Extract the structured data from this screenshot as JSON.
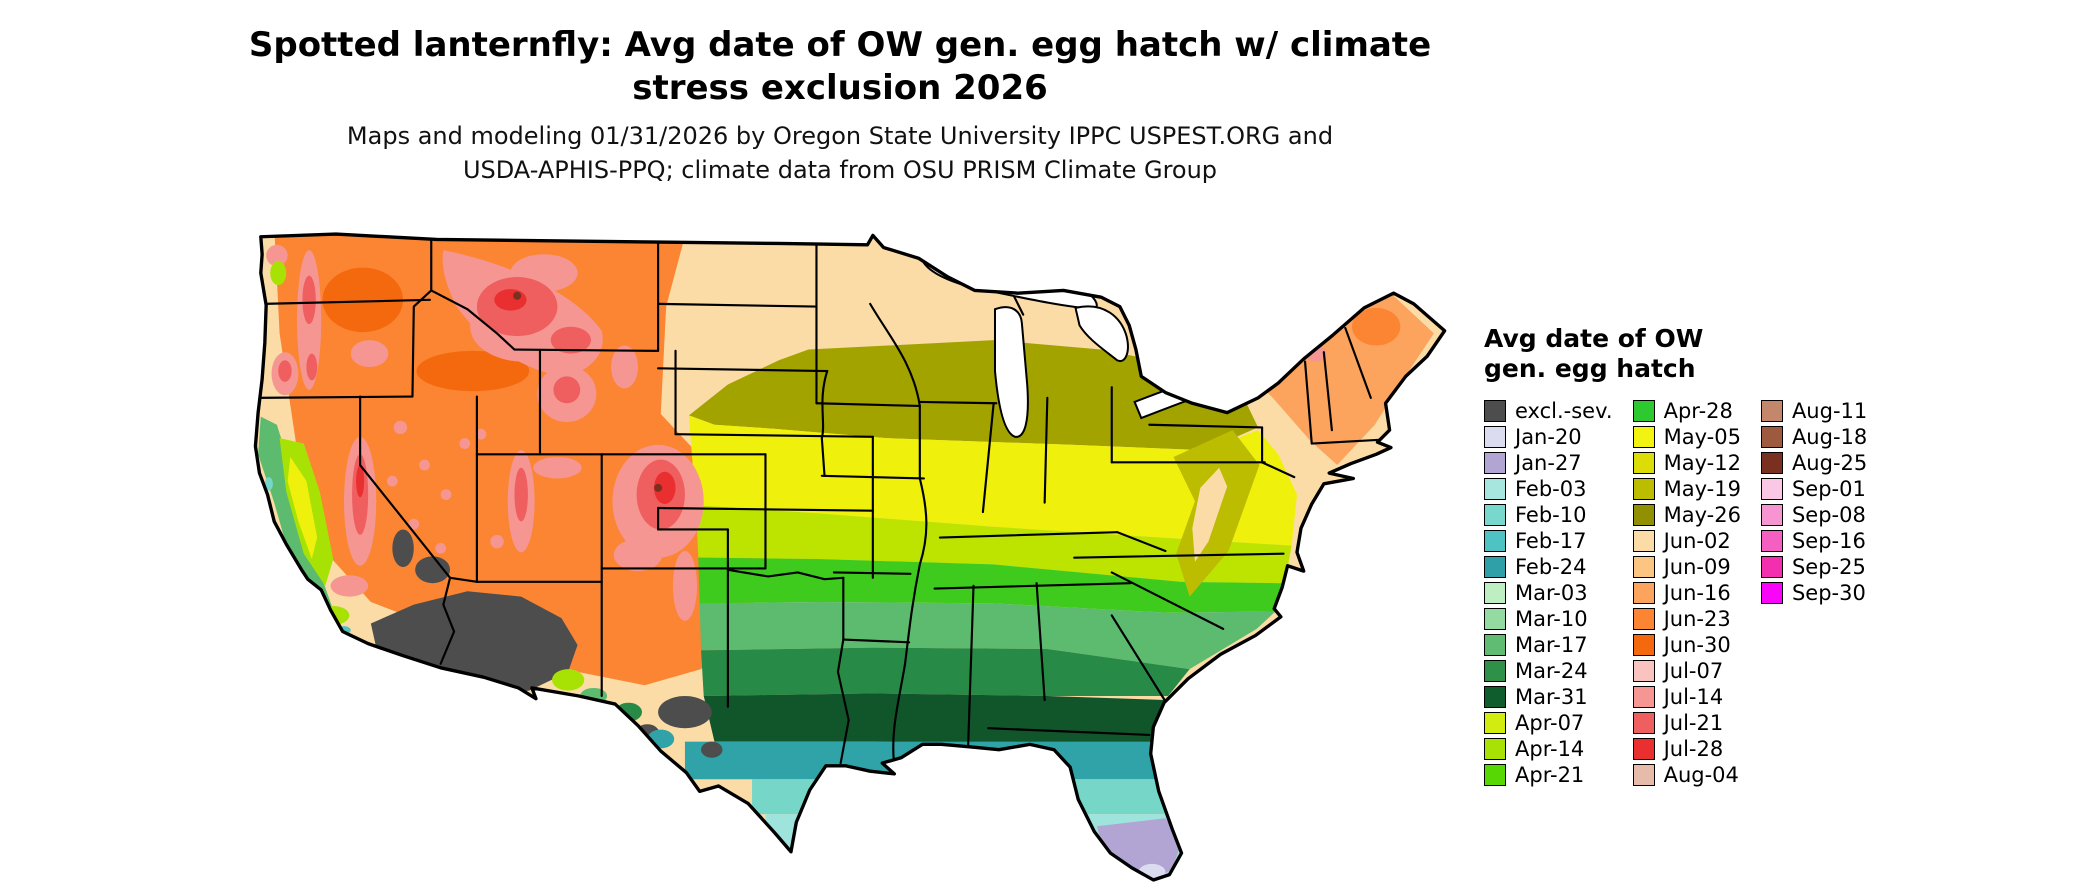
{
  "title": {
    "line1": "Spotted lanternfly: Avg date of OW gen. egg hatch w/ climate",
    "line2": "stress exclusion 2026"
  },
  "subtitle": {
    "line1": "Maps and modeling 01/31/2026 by Oregon State University IPPC USPEST.ORG and",
    "line2": "USDA-APHIS-PPQ; climate data from OSU PRISM Climate Group"
  },
  "legend": {
    "title_line1": "Avg date of OW",
    "title_line2": "gen. egg hatch",
    "columns": [
      [
        {
          "label": "excl.-sev.",
          "color": "#4D4D4D"
        },
        {
          "label": "Jan-20",
          "color": "#DCDCF0"
        },
        {
          "label": "Jan-27",
          "color": "#B2A5D3"
        },
        {
          "label": "Feb-03",
          "color": "#A6E6DE"
        },
        {
          "label": "Feb-10",
          "color": "#79D8CE"
        },
        {
          "label": "Feb-17",
          "color": "#4FC3C3"
        },
        {
          "label": "Feb-24",
          "color": "#2FA0A8"
        },
        {
          "label": "Mar-03",
          "color": "#BDEFC3"
        },
        {
          "label": "Mar-10",
          "color": "#93DBA0"
        },
        {
          "label": "Mar-17",
          "color": "#60BC72"
        },
        {
          "label": "Mar-24",
          "color": "#2F9148"
        },
        {
          "label": "Mar-31",
          "color": "#0F5D2C"
        },
        {
          "label": "Apr-07",
          "color": "#D3EC10"
        },
        {
          "label": "Apr-14",
          "color": "#A8E205"
        },
        {
          "label": "Apr-21",
          "color": "#57D805"
        }
      ],
      [
        {
          "label": "Apr-28",
          "color": "#2EC92E"
        },
        {
          "label": "May-05",
          "color": "#F3F311"
        },
        {
          "label": "May-12",
          "color": "#DCDC06"
        },
        {
          "label": "May-19",
          "color": "#BCBC00"
        },
        {
          "label": "May-26",
          "color": "#909000"
        },
        {
          "label": "Jun-02",
          "color": "#FBDCA6"
        },
        {
          "label": "Jun-09",
          "color": "#FCC581"
        },
        {
          "label": "Jun-16",
          "color": "#FCA35D"
        },
        {
          "label": "Jun-23",
          "color": "#FB8532"
        },
        {
          "label": "Jun-30",
          "color": "#F4690E"
        },
        {
          "label": "Jul-07",
          "color": "#F9C4BF"
        },
        {
          "label": "Jul-14",
          "color": "#F59693"
        },
        {
          "label": "Jul-21",
          "color": "#EF5F5F"
        },
        {
          "label": "Jul-28",
          "color": "#E92F2F"
        },
        {
          "label": "Aug-04",
          "color": "#E6BBA9"
        }
      ],
      [
        {
          "label": "Aug-11",
          "color": "#C4876C"
        },
        {
          "label": "Aug-18",
          "color": "#9E5A3E"
        },
        {
          "label": "Aug-25",
          "color": "#7A3020"
        },
        {
          "label": "Sep-01",
          "color": "#FAC7E4"
        },
        {
          "label": "Sep-08",
          "color": "#F795D3"
        },
        {
          "label": "Sep-16",
          "color": "#F55FC2"
        },
        {
          "label": "Sep-25",
          "color": "#F32FB0"
        },
        {
          "label": "Sep-30",
          "color": "#F905F9"
        }
      ]
    ]
  },
  "map": {
    "region": "Contiguous United States choropleth",
    "fills": {
      "base": "#FBDCA6",
      "west_orange": "#FB8532",
      "deep_orange": "#F4690E",
      "olive": "#A3A300",
      "olive_dark": "#8F8F00",
      "olive_yellow": "#BCBC00",
      "yellow": "#F0F00D",
      "chartreuse": "#BCE400",
      "yellowgreen": "#A8E205",
      "green_bright": "#3FCB1E",
      "green_med": "#5CBB6E",
      "green_dark": "#278A46",
      "green_deep": "#11552B",
      "teal": "#2FA3A8",
      "teal_light": "#4FC3BE",
      "cyan": "#76D7C9",
      "cyan_light": "#9FE3DD",
      "lavender": "#B2A5D3",
      "lavender_light": "#DCDCF0",
      "pink": "#F59693",
      "red": "#EF5F5F",
      "red_deep": "#E92F2F",
      "maroon": "#7A3020",
      "gray_excl": "#4D4D4D",
      "ne_orange": "#FCA35D",
      "white": "#FFFFFF"
    }
  },
  "chart_data": {
    "type": "choropleth",
    "title": "Spotted lanternfly: Avg date of OW gen. egg hatch w/ climate stress exclusion 2026",
    "legend_title": "Avg date of OW gen. egg hatch",
    "scale_order": [
      "excl.-sev.",
      "Jan-20",
      "Jan-27",
      "Feb-03",
      "Feb-10",
      "Feb-17",
      "Feb-24",
      "Mar-03",
      "Mar-10",
      "Mar-17",
      "Mar-24",
      "Mar-31",
      "Apr-07",
      "Apr-14",
      "Apr-21",
      "Apr-28",
      "May-05",
      "May-12",
      "May-19",
      "May-26",
      "Jun-02",
      "Jun-09",
      "Jun-16",
      "Jun-23",
      "Jun-30",
      "Jul-07",
      "Jul-14",
      "Jul-21",
      "Jul-28",
      "Aug-04",
      "Aug-11",
      "Aug-18",
      "Aug-25",
      "Sep-01",
      "Sep-08",
      "Sep-16",
      "Sep-25",
      "Sep-30"
    ],
    "pattern_notes": [
      "Northern plains, upper Midwest and New England: early-to-mid June hatch (tan/orange)",
      "Central belt (NE-IA-IL-IN-OH-PA): mid-to-late May (olive)",
      "KS-MO-KY-VA belt: early May (yellow)",
      "OK-AR-TN-NC belt: mid-to-late April (yellow-green/green)",
      "Deep South and central Texas: March (dark greens)",
      "Gulf Coast, south Texas, Florida: February (teal/cyan)",
      "South Florida: late January (lavender)",
      "Mountain West: July (pink/red), valleys late June (orange)",
      "Desert Southwest (AZ/SE CA, W TX): excluded - severe climate stress (dark gray)",
      "California Central Valley: late April - early May (yellow-green/yellow)"
    ]
  }
}
